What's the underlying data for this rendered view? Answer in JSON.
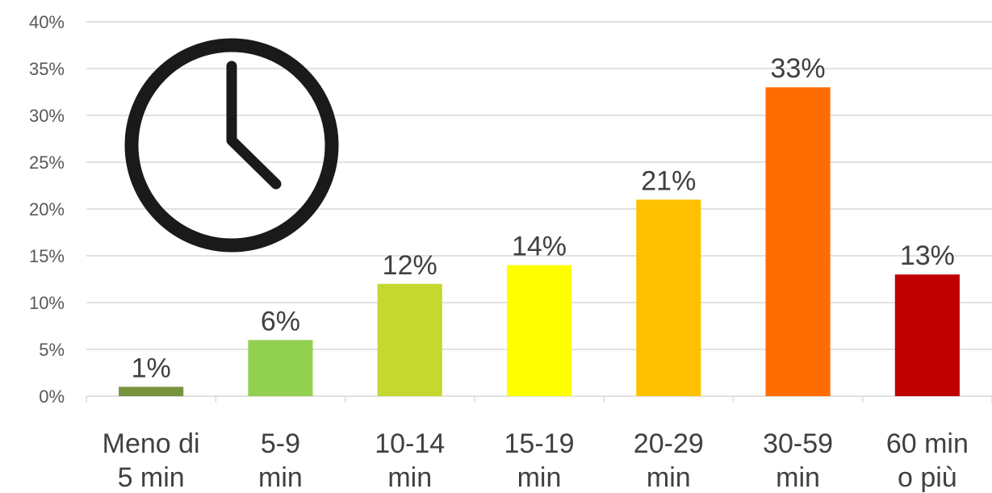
{
  "chart_data": {
    "type": "bar",
    "categories": [
      [
        "Meno di",
        "5 min"
      ],
      [
        "5-9",
        "min"
      ],
      [
        "10-14",
        "min"
      ],
      [
        "15-19",
        "min"
      ],
      [
        "20-29",
        "min"
      ],
      [
        "30-59",
        "min"
      ],
      [
        "60 min",
        "o più"
      ]
    ],
    "values": [
      1,
      6,
      12,
      14,
      21,
      33,
      13
    ],
    "data_labels": [
      "1%",
      "6%",
      "12%",
      "14%",
      "21%",
      "33%",
      "13%"
    ],
    "bar_colors": [
      "#77933c",
      "#92d050",
      "#c4d82f",
      "#ffff00",
      "#ffc000",
      "#ff6d00",
      "#c00000"
    ],
    "ylim": [
      0,
      40
    ],
    "y_ticks": [
      0,
      5,
      10,
      15,
      20,
      25,
      30,
      35,
      40
    ],
    "y_tick_labels": [
      "0%",
      "5%",
      "10%",
      "15%",
      "20%",
      "25%",
      "30%",
      "35%",
      "40%"
    ],
    "grid": true,
    "legend": "none",
    "title": "",
    "xlabel": "",
    "ylabel": ""
  },
  "decoration": {
    "icon": "clock-icon"
  }
}
